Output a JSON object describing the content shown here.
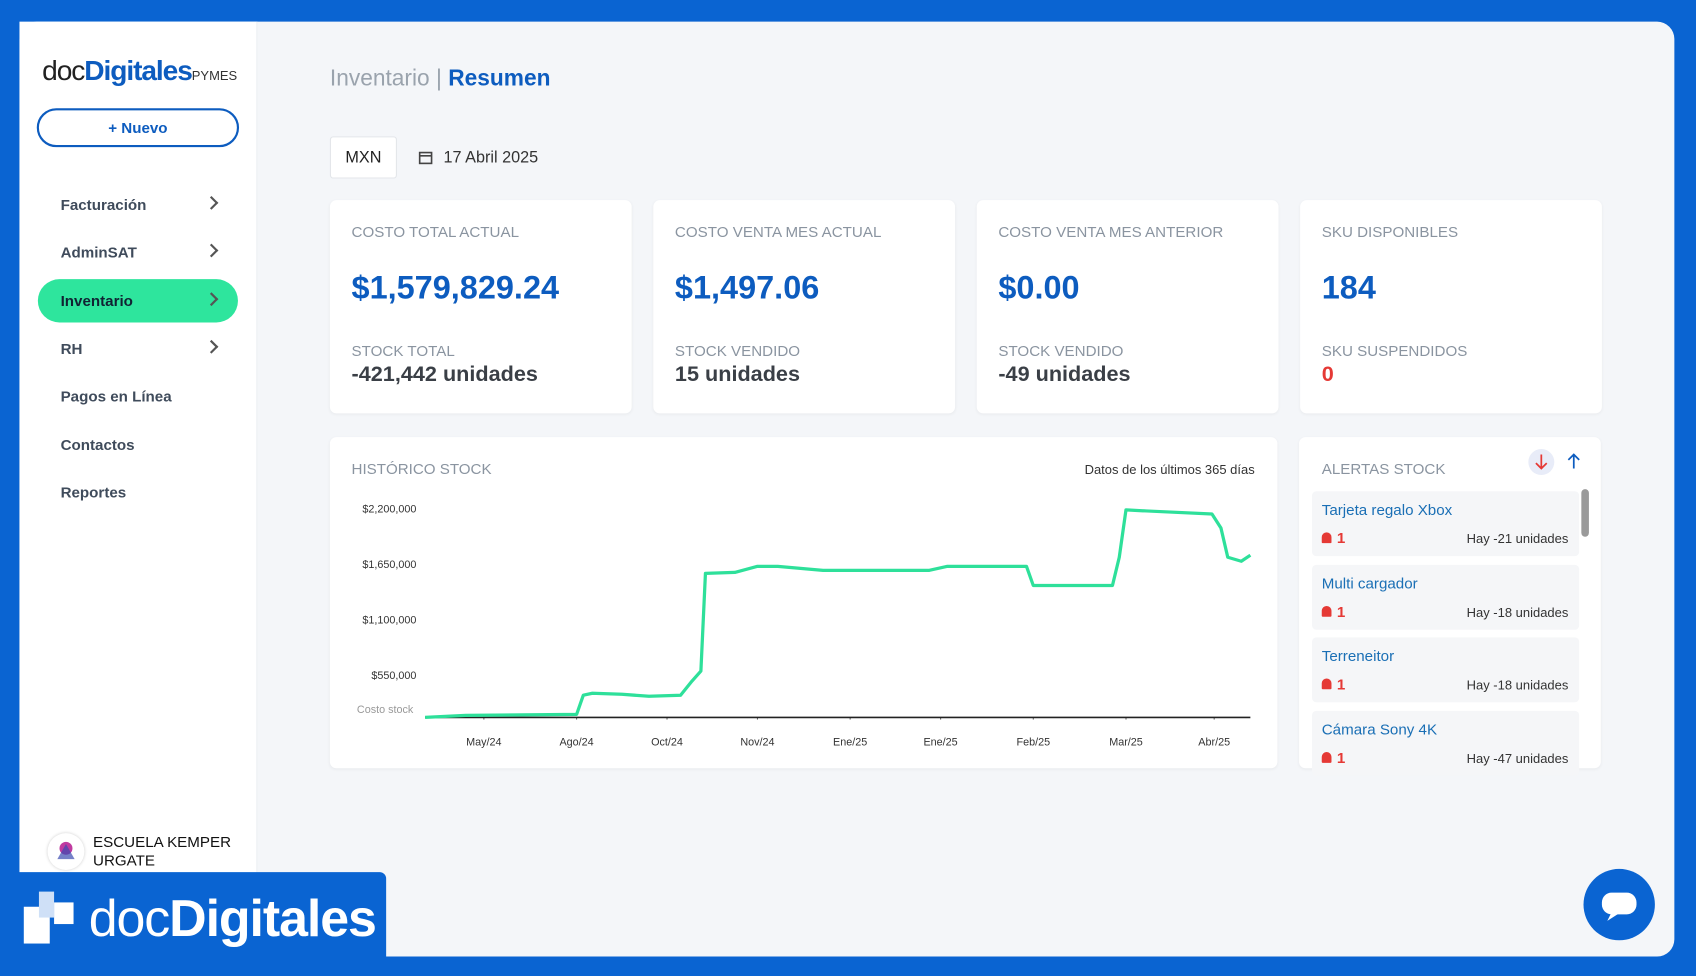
{
  "sidebar": {
    "logo": {
      "prefix": "doc",
      "main": "Digitales",
      "suffix": "PYMES"
    },
    "new_button": "+ Nuevo",
    "menu": [
      "Facturación",
      "AdminSAT",
      "Inventario",
      "RH",
      "Pagos en Línea",
      "Contactos",
      "Reportes"
    ],
    "company": [
      "ESCUELA KEMPER",
      "URGATE"
    ]
  },
  "header": {
    "section": "Inventario",
    "separator": "|",
    "page": "Resumen"
  },
  "filters": {
    "currency": "MXN",
    "date": "17 Abril 2025"
  },
  "cards": [
    {
      "label": "COSTO TOTAL ACTUAL",
      "value": "$1,579,829.24",
      "sub_label": "STOCK TOTAL",
      "sub_value": "-421,442 unidades"
    },
    {
      "label": "COSTO VENTA MES ACTUAL",
      "value": "$1,497.06",
      "sub_label": "STOCK VENDIDO",
      "sub_value": "15 unidades"
    },
    {
      "label": "COSTO VENTA MES ANTERIOR",
      "value": "$0.00",
      "sub_label": "STOCK VENDIDO",
      "sub_value": "-49 unidades"
    },
    {
      "label": "SKU DISPONIBLES",
      "value": "184",
      "sub_label": "SKU SUSPENDIDOS",
      "sub_value": "0"
    }
  ],
  "chart_data": {
    "type": "line",
    "title": "HISTÓRICO STOCK",
    "note": "Datos de los últimos 365 días",
    "y_label": "Costo stock",
    "x": [
      0,
      18,
      67,
      70,
      74,
      87,
      99,
      113,
      118,
      122,
      124,
      137,
      147,
      156,
      176,
      223,
      231,
      266,
      269,
      304,
      307,
      310,
      319,
      348,
      352,
      355,
      361,
      365
    ],
    "series": [
      {
        "color": "#2ee09a",
        "values": [
          130000,
          150000,
          160000,
          350000,
          370000,
          360000,
          340000,
          350000,
          490000,
          590000,
          1560000,
          1570000,
          1630000,
          1630000,
          1590000,
          1590000,
          1630000,
          1630000,
          1440000,
          1440000,
          1720000,
          2190000,
          2180000,
          2150000,
          2010000,
          1720000,
          1680000,
          1740000
        ]
      }
    ],
    "xlim": [
      0,
      365
    ],
    "ylim": [
      130000,
      2300000
    ],
    "xticks": [
      {
        "value": 26,
        "label": "May/24"
      },
      {
        "value": 67,
        "label": "Ago/24"
      },
      {
        "value": 107,
        "label": "Oct/24"
      },
      {
        "value": 147,
        "label": "Nov/24"
      },
      {
        "value": 188,
        "label": "Ene/25"
      },
      {
        "value": 228,
        "label": "Ene/25"
      },
      {
        "value": 269,
        "label": "Feb/25"
      },
      {
        "value": 310,
        "label": "Mar/25"
      },
      {
        "value": 349,
        "label": "Abr/25"
      }
    ],
    "yticks": [
      {
        "value": 550000,
        "label": "$550,000"
      },
      {
        "value": 1100000,
        "label": "$1,100,000"
      },
      {
        "value": 1650000,
        "label": "$1,650,000"
      },
      {
        "value": 2200000,
        "label": "$2,200,000"
      }
    ]
  },
  "alerts": {
    "title": "ALERTAS STOCK",
    "items": [
      {
        "name": "Tarjeta regalo Xbox",
        "count": 1,
        "text": "Hay -21 unidades"
      },
      {
        "name": "Multi cargador",
        "count": 1,
        "text": "Hay -18 unidades"
      },
      {
        "name": "Terreneitor",
        "count": 1,
        "text": "Hay -18 unidades"
      },
      {
        "name": "Cámara Sony 4K",
        "count": 1,
        "text": "Hay -47 unidades"
      }
    ]
  },
  "banner": {
    "prefix": "doc",
    "main": "Digitales"
  }
}
